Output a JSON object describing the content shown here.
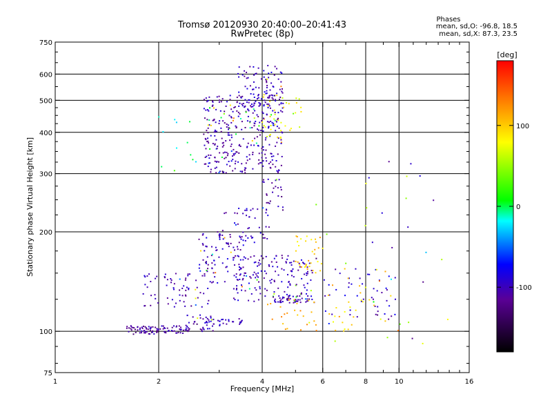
{
  "chart_data": {
    "type": "scatter",
    "title": "Tromsø 20120930 20:40:00–20:41:43",
    "subtitle": "RwPretec (8p)",
    "xlabel": "Frequency [MHz]",
    "ylabel": "Stationary phase Virtual Height [km]",
    "x_scale": "log",
    "y_scale": "log",
    "xlim": [
      1,
      16
    ],
    "ylim": [
      75,
      750
    ],
    "x_ticks": [
      1,
      2,
      4,
      6,
      8,
      10,
      16
    ],
    "x_tick_labels": [
      "1",
      "2",
      "4",
      "6",
      "8",
      "10",
      "16"
    ],
    "y_ticks": [
      75,
      100,
      200,
      300,
      400,
      500,
      600,
      750
    ],
    "y_tick_labels": [
      "75",
      "100",
      "200",
      "300",
      "400",
      "500",
      "600",
      "750"
    ],
    "grid": true,
    "phase_info": {
      "heading": "Phases",
      "line_o": "mean, sd,O: -96.8, 18.5",
      "line_x": "mean, sd,X: 87.3, 23.5"
    },
    "colorbar": {
      "label": "[deg]",
      "range": [
        -180,
        180
      ],
      "ticks": [
        100,
        0,
        -100
      ],
      "tick_labels": [
        "100",
        "0",
        "-100"
      ],
      "colormap": "rainbow"
    },
    "clusters": [
      {
        "f": [
          1.6,
          2.45
        ],
        "h": [
          98,
          104
        ],
        "phase": -110,
        "n": 90
      },
      {
        "f": [
          2.4,
          2.9
        ],
        "h": [
          100,
          112
        ],
        "phase": -105,
        "n": 35
      },
      {
        "f": [
          2.7,
          3.5
        ],
        "h": [
          104,
          110
        ],
        "phase": -100,
        "n": 30
      },
      {
        "f": [
          1.8,
          2.8
        ],
        "h": [
          118,
          150
        ],
        "phase": -105,
        "n": 70
      },
      {
        "f": [
          2.6,
          3.6
        ],
        "h": [
          140,
          200
        ],
        "phase": -100,
        "n": 90
      },
      {
        "f": [
          3.3,
          5.6
        ],
        "h": [
          123,
          170
        ],
        "phase": -100,
        "n": 160
      },
      {
        "f": [
          4.3,
          5.7
        ],
        "h": [
          122,
          128
        ],
        "phase": -105,
        "n": 40
      },
      {
        "f": [
          3.0,
          4.2
        ],
        "h": [
          180,
          240
        ],
        "phase": -100,
        "n": 50
      },
      {
        "f": [
          4.0,
          4.6
        ],
        "h": [
          230,
          290
        ],
        "phase": -110,
        "n": 25
      },
      {
        "f": [
          2.7,
          4.6
        ],
        "h": [
          300,
          520
        ],
        "phase": -105,
        "n": 330
      },
      {
        "f": [
          3.4,
          4.6
        ],
        "h": [
          450,
          640
        ],
        "phase": -100,
        "n": 100
      },
      {
        "f": [
          4.0,
          5.2
        ],
        "h": [
          380,
          520
        ],
        "phase": 80,
        "n": 40
      },
      {
        "f": [
          5.0,
          6.0
        ],
        "h": [
          150,
          200
        ],
        "phase": 100,
        "n": 35
      },
      {
        "f": [
          4.0,
          5.8
        ],
        "h": [
          100,
          125
        ],
        "phase": 110,
        "n": 25
      },
      {
        "f": [
          6.0,
          9.8
        ],
        "h": [
          110,
          155
        ],
        "phase": -95,
        "n": 45
      },
      {
        "f": [
          6.2,
          9.8
        ],
        "h": [
          100,
          155
        ],
        "phase": 90,
        "n": 35
      },
      {
        "f": [
          2.0,
          4.0
        ],
        "h": [
          300,
          450
        ],
        "phase": -10,
        "n": 20
      },
      {
        "f": [
          5.5,
          14
        ],
        "h": [
          90,
          330
        ],
        "phase": 60,
        "n": 18
      },
      {
        "f": [
          7.5,
          14
        ],
        "h": [
          95,
          330
        ],
        "phase": -105,
        "n": 15
      }
    ]
  },
  "colors": {
    "background": "#ffffff",
    "axis": "#000000",
    "grid": "#000000"
  }
}
